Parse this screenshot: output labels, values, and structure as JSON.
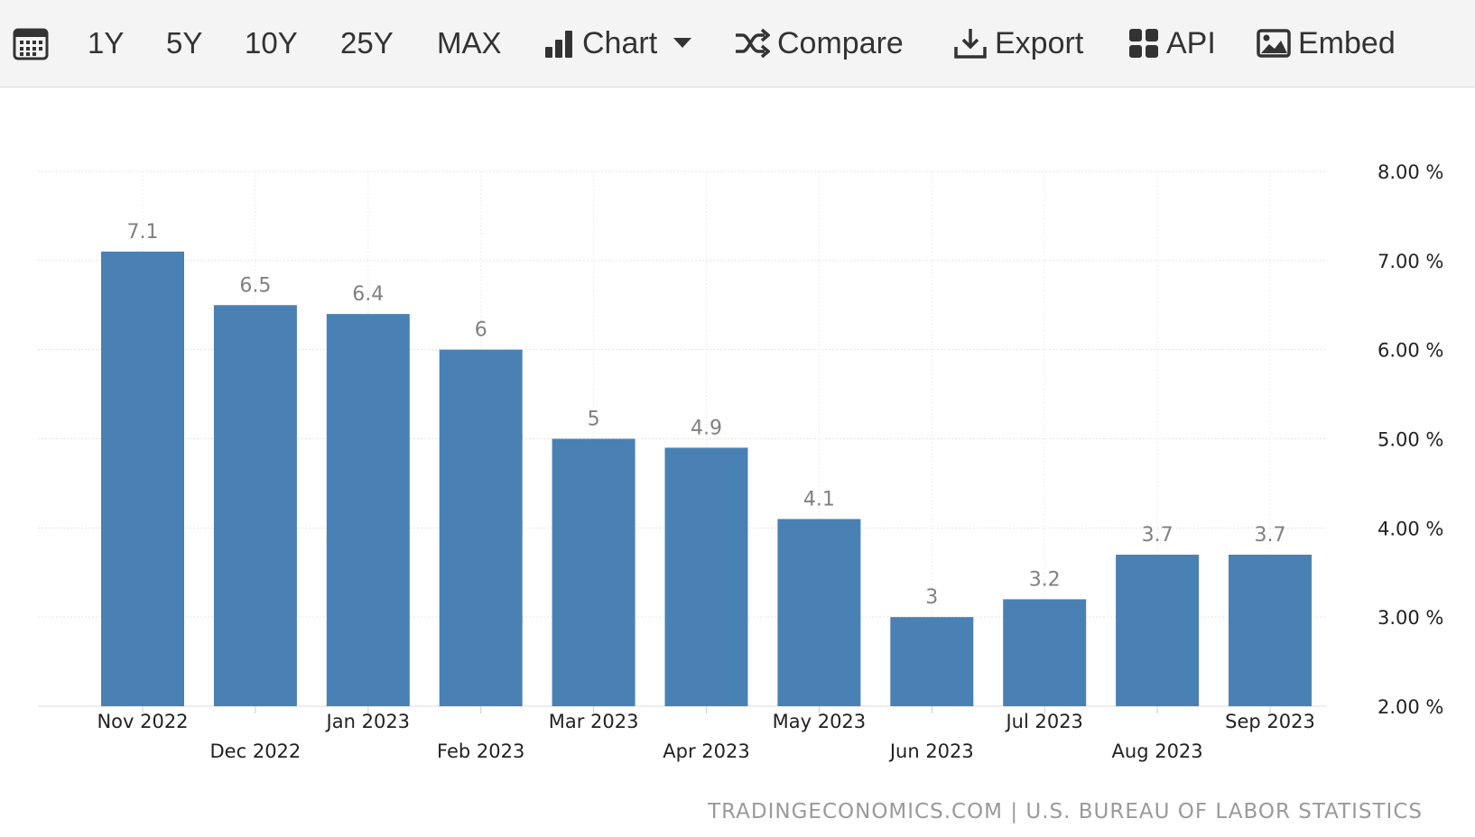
{
  "toolbar": {
    "calendar_icon": "calendar-icon",
    "ranges": [
      "1Y",
      "5Y",
      "10Y",
      "25Y",
      "MAX"
    ],
    "chart_label": "Chart",
    "compare_label": "Compare",
    "export_label": "Export",
    "api_label": "API",
    "embed_label": "Embed"
  },
  "source": "TRADINGECONOMICS.COM | U.S. BUREAU OF LABOR STATISTICS",
  "chart_data": {
    "type": "bar",
    "categories": [
      "Nov 2022",
      "Dec 2022",
      "Jan 2023",
      "Feb 2023",
      "Mar 2023",
      "Apr 2023",
      "May 2023",
      "Jun 2023",
      "Jul 2023",
      "Aug 2023",
      "Sep 2023"
    ],
    "values": [
      7.1,
      6.5,
      6.4,
      6,
      5,
      4.9,
      4.1,
      3,
      3.2,
      3.7,
      3.7
    ],
    "data_labels": [
      "7.1",
      "6.5",
      "6.4",
      "6",
      "5",
      "4.9",
      "4.1",
      "3",
      "3.2",
      "3.7",
      "3.7"
    ],
    "ylim": [
      2,
      8
    ],
    "yticks": [
      "2.00 %",
      "3.00 %",
      "4.00 %",
      "5.00 %",
      "6.00 %",
      "7.00 %",
      "8.00 %"
    ],
    "ytick_values": [
      2,
      3,
      4,
      5,
      6,
      7,
      8
    ],
    "y_axis_position": "right",
    "grid": true,
    "bar_color": "#4a81b4",
    "label_color": "#808080"
  }
}
